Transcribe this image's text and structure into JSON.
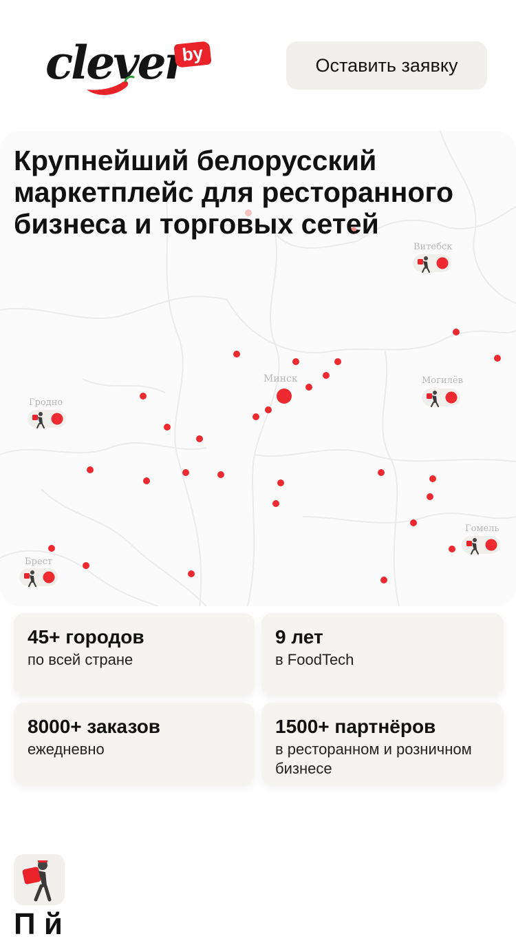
{
  "brand": {
    "logo_text": "clever",
    "logo_badge": "by"
  },
  "header": {
    "cta_label": "Оставить заявку"
  },
  "hero": {
    "title": "Крупнейший белорусский маркетплейс для ресторанного бизнеса и торговых сетей",
    "cities": [
      "Витебск",
      "Минск",
      "Могилёв",
      "Гродно",
      "Брест",
      "Гомель"
    ]
  },
  "stats": [
    {
      "value": "45+ городов",
      "caption": "по всей стране"
    },
    {
      "value": "9 лет",
      "caption": "в FoodTech"
    },
    {
      "value": "8000+ заказов",
      "caption": "ежедневно"
    },
    {
      "value": "1500+ партнёров",
      "caption": "в ресторанном и розничном бизнесе"
    }
  ],
  "next_section": {
    "title_partial": "П   й"
  },
  "colors": {
    "accent": "#e8242a",
    "card_bg": "#f6f4f1",
    "hero_bg": "#fbfbfb"
  }
}
